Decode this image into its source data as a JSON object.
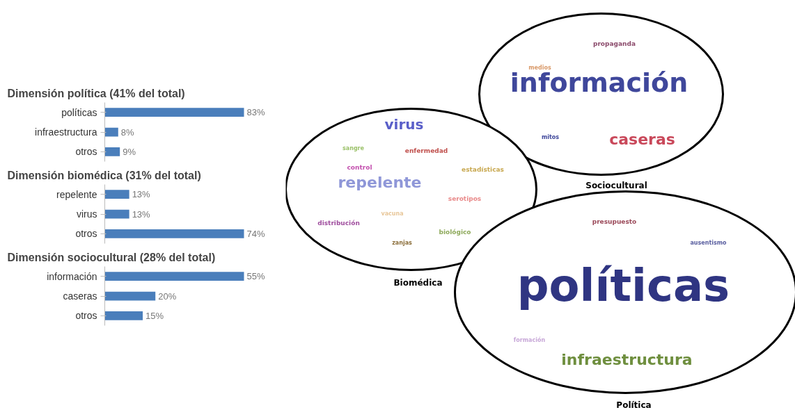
{
  "chart_data": [
    {
      "type": "bar",
      "orientation": "horizontal",
      "title": "Dimensión política (41% del total)",
      "categories": [
        "políticas",
        "infraestructura",
        "otros"
      ],
      "values": [
        83,
        8,
        9
      ],
      "value_labels": [
        "83%",
        "8%",
        "9%"
      ],
      "color": "#4a7ebb"
    },
    {
      "type": "bar",
      "orientation": "horizontal",
      "title": "Dimensión biomédica (31% del total)",
      "categories": [
        "repelente",
        "virus",
        "otros"
      ],
      "values": [
        13,
        13,
        74
      ],
      "value_labels": [
        "13%",
        "13%",
        "74%"
      ],
      "color": "#4a7ebb"
    },
    {
      "type": "bar",
      "orientation": "horizontal",
      "title": "Dimensión sociocultural (28% del total)",
      "categories": [
        "información",
        "caseras",
        "otros"
      ],
      "values": [
        55,
        20,
        15
      ],
      "value_labels": [
        "55%",
        "20%",
        "15%"
      ],
      "color": "#4a7ebb"
    },
    {
      "type": "other",
      "title": "Sociocultural",
      "annotations": [
        "información",
        "caseras",
        "propaganda",
        "medios",
        "mitos"
      ]
    },
    {
      "type": "other",
      "title": "Biomédica",
      "annotations": [
        "virus",
        "sangre",
        "enfermedad",
        "control",
        "estadísticas",
        "repelente",
        "serotipos",
        "vacuna",
        "distribución",
        "biológico",
        "zanjas"
      ]
    },
    {
      "type": "other",
      "title": "Política",
      "annotations": [
        "presupuesto",
        "ausentismo",
        "políticas",
        "formación",
        "infraestructura"
      ]
    }
  ]
}
